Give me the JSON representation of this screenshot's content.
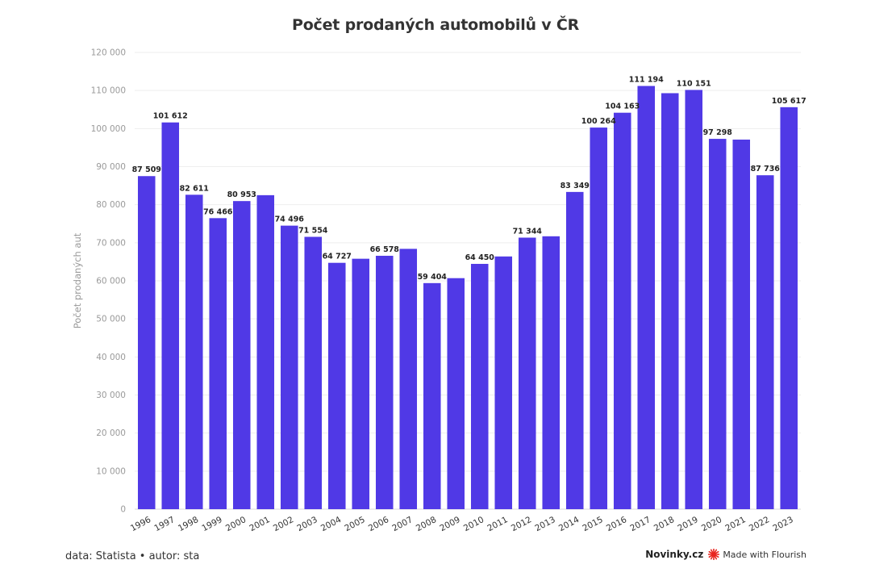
{
  "title": "Počet prodaných automobilů v ČR",
  "footer": {
    "source": "data: Statista • autor: sta",
    "brand": "Novinky.cz",
    "flourish": "Made with Flourish"
  },
  "colors": {
    "bar": "#5039e6",
    "grid": "#eeeeee",
    "flourish_icon": "#e8251f"
  },
  "chart_data": {
    "type": "bar",
    "title": "Počet prodaných automobilů v ČR",
    "xlabel": "",
    "ylabel": "Počet prodaných aut",
    "ylim": [
      0,
      120000
    ],
    "yticks": [
      0,
      10000,
      20000,
      30000,
      40000,
      50000,
      60000,
      70000,
      80000,
      90000,
      100000,
      110000,
      120000
    ],
    "ytick_labels": [
      "0",
      "10 000",
      "20 000",
      "30 000",
      "40 000",
      "50 000",
      "60 000",
      "70 000",
      "80 000",
      "90 000",
      "100 000",
      "110 000",
      "120 000"
    ],
    "grid": true,
    "categories": [
      "1996",
      "1997",
      "1998",
      "1999",
      "2000",
      "2001",
      "2002",
      "2003",
      "2004",
      "2005",
      "2006",
      "2007",
      "2008",
      "2009",
      "2010",
      "2011",
      "2012",
      "2013",
      "2014",
      "2015",
      "2016",
      "2017",
      "2018",
      "2019",
      "2020",
      "2021",
      "2022",
      "2023"
    ],
    "values": [
      87509,
      101612,
      82611,
      76466,
      80953,
      82500,
      74496,
      71554,
      64727,
      65800,
      66578,
      68400,
      59404,
      60700,
      64450,
      66400,
      71344,
      71700,
      83349,
      100264,
      104163,
      111194,
      109300,
      110151,
      97298,
      97100,
      87736,
      105617
    ],
    "data_labels": [
      "87 509",
      "101 612",
      "82 611",
      "76 466",
      "80 953",
      "",
      "74 496",
      "71 554",
      "64 727",
      "",
      "66 578",
      "",
      "59 404",
      "",
      "64 450",
      "",
      "71 344",
      "",
      "83 349",
      "100 264",
      "104 163",
      "111 194",
      "",
      "110 151",
      "97 298",
      "",
      "87 736",
      "105 617"
    ]
  }
}
